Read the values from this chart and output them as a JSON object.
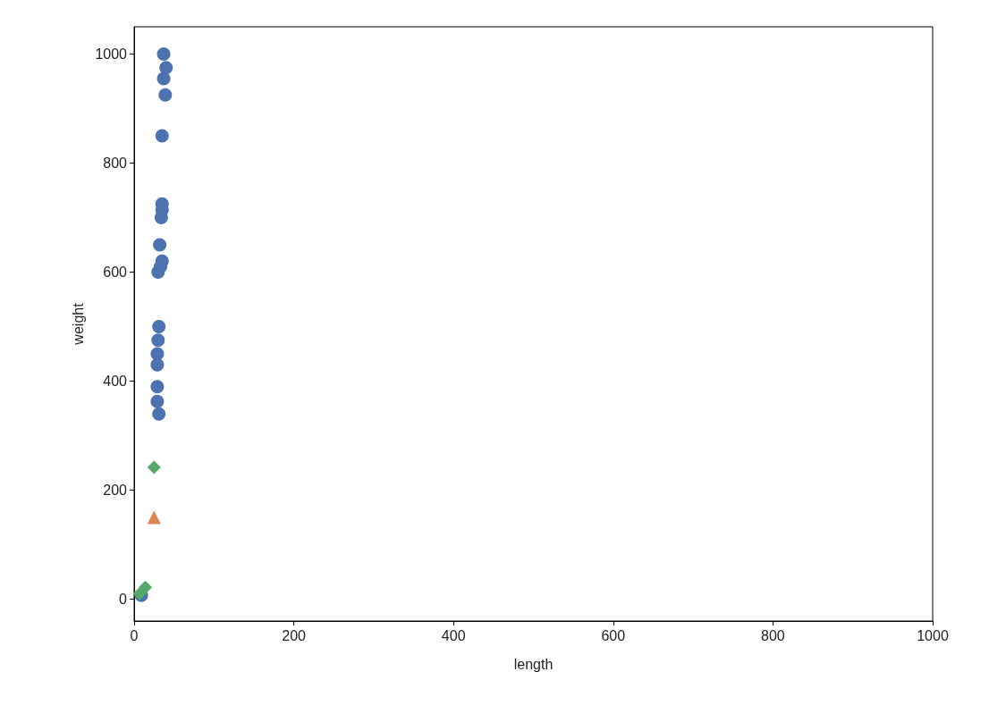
{
  "chart_data": {
    "type": "scatter",
    "xlabel": "length",
    "ylabel": "weight",
    "xlim": [
      0,
      1000
    ],
    "xticks": [
      0,
      200,
      400,
      600,
      800,
      1000
    ],
    "ylim": [
      -40,
      1050
    ],
    "yticks": [
      0,
      200,
      400,
      600,
      800,
      1000
    ],
    "grid": false,
    "series": [
      {
        "color": "#4c72b0",
        "marker": "circle",
        "x": [
          37,
          40,
          37,
          39,
          35,
          35,
          35,
          34,
          null,
          32,
          35,
          33,
          30,
          null,
          31,
          30,
          29,
          29,
          29,
          29,
          31,
          9
        ],
        "values": [
          1000,
          975,
          955,
          925,
          850,
          725,
          714,
          700,
          null,
          650,
          620,
          610,
          600,
          null,
          500,
          475,
          450,
          430,
          390,
          363,
          340,
          7
        ]
      },
      {
        "color": "#dd8452",
        "marker": "triangle",
        "x": [
          25
        ],
        "values": [
          150
        ]
      },
      {
        "color": "#55a868",
        "marker": "diamond",
        "x": [
          25,
          14,
          7
        ],
        "values": [
          242,
          22,
          10
        ]
      }
    ]
  }
}
